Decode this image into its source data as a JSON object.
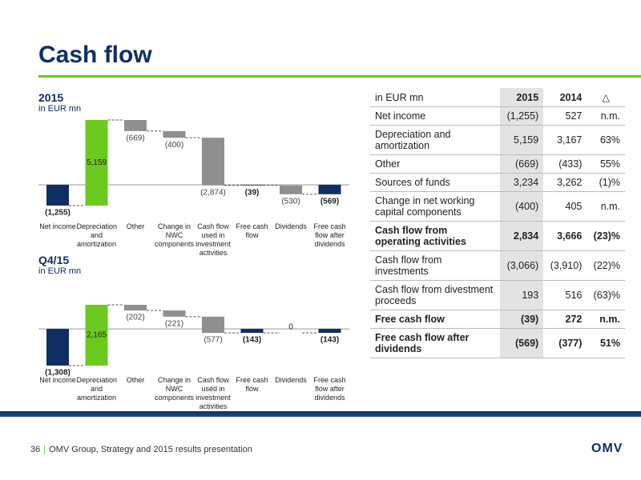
{
  "header": {
    "title": "Cash flow"
  },
  "chart_data": [
    {
      "type": "waterfall",
      "title": "2015",
      "subtitle": "in EUR mn",
      "categories": [
        "Net income",
        "Depreciation and amortization",
        "Other",
        "Change in NWC components",
        "Cash flow used in investment activities",
        "Free cash flow",
        "Dividends",
        "Free cash flow after dividends"
      ],
      "values": [
        -1255,
        5159,
        -669,
        -400,
        -2874,
        -39,
        -530,
        -569
      ],
      "value_labels": [
        "(1,255)",
        "5,159",
        "(669)",
        "(400)",
        "(2,874)",
        "(39)",
        "(530)",
        "(569)"
      ],
      "measure": [
        "absolute",
        "relative",
        "relative",
        "relative",
        "relative",
        "absolute",
        "relative",
        "absolute"
      ],
      "colors": {
        "absolute": "#0f2f63",
        "increase": "#6cc91e",
        "decrease": "#8f8f8f"
      }
    },
    {
      "type": "waterfall",
      "title": "Q4/15",
      "subtitle": "in EUR mn",
      "categories": [
        "Net income",
        "Depreciation and amortization",
        "Other",
        "Change in NWC components",
        "Cash flow used in investment activities",
        "Free cash flow",
        "Dividends",
        "Free cash flow after dividends"
      ],
      "values": [
        -1308,
        2165,
        -202,
        -221,
        -577,
        -143,
        0,
        -143
      ],
      "value_labels": [
        "(1,308)",
        "2,165",
        "(202)",
        "(221)",
        "(577)",
        "(143)",
        "0",
        "(143)"
      ],
      "measure": [
        "absolute",
        "relative",
        "relative",
        "relative",
        "relative",
        "absolute",
        "relative",
        "absolute"
      ],
      "colors": {
        "absolute": "#0f2f63",
        "increase": "#6cc91e",
        "decrease": "#8f8f8f"
      }
    }
  ],
  "table": {
    "header": [
      "in EUR mn",
      "2015",
      "2014",
      "△"
    ],
    "rows": [
      {
        "cells": [
          "Net income",
          "(1,255)",
          "527",
          "n.m."
        ],
        "bold": false
      },
      {
        "cells": [
          "Depreciation and amortization",
          "5,159",
          "3,167",
          "63%"
        ],
        "bold": false
      },
      {
        "cells": [
          "Other",
          "(669)",
          "(433)",
          "55%"
        ],
        "bold": false
      },
      {
        "cells": [
          "Sources of funds",
          "3,234",
          "3,262",
          "(1)%"
        ],
        "bold": false
      },
      {
        "cells": [
          "Change in net working capital components",
          "(400)",
          "405",
          "n.m."
        ],
        "bold": false
      },
      {
        "cells": [
          "Cash flow from operating activities",
          "2,834",
          "3,666",
          "(23)%"
        ],
        "bold": true
      },
      {
        "cells": [
          "Cash flow from investments",
          "(3,066)",
          "(3,910)",
          "(22)%"
        ],
        "bold": false
      },
      {
        "cells": [
          "Cash flow from divestment proceeds",
          "193",
          "516",
          "(63)%"
        ],
        "bold": false
      },
      {
        "cells": [
          "Free cash flow",
          "(39)",
          "272",
          "n.m."
        ],
        "bold": true
      },
      {
        "cells": [
          "Free cash flow after dividends",
          "(569)",
          "(377)",
          "51%"
        ],
        "bold": true
      }
    ]
  },
  "footer": {
    "page": "36",
    "text": "OMV Group, Strategy and 2015 results presentation",
    "logo": "OMV"
  }
}
